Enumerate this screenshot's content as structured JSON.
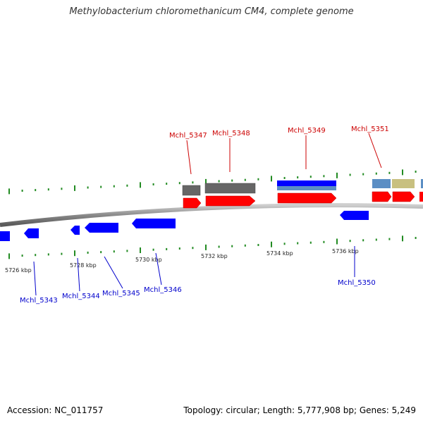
{
  "title": "Methylobacterium chloromethanicum CM4, complete genome",
  "footer": {
    "accession": "Accession: NC_011757",
    "topology": "Topology: circular; Length: 5,777,908 bp; Genes: 5,249"
  },
  "colors": {
    "forward_label": "#cc0000",
    "reverse_label": "#0000cc",
    "backbone": "#888888",
    "tick": "#228b22",
    "cds_forward": "#ff0000",
    "cds_reverse": "#0000ff",
    "gray_feature": "#666666",
    "steelblue_feature": "#5b8ec4",
    "khaki_feature": "#c8c080"
  },
  "scale_labels": [
    "5726 kbp",
    "5728 kbp",
    "5730 kbp",
    "5732 kbp",
    "5734 kbp",
    "5736 kbp"
  ],
  "genes_forward": [
    {
      "name": "Mchl_5347"
    },
    {
      "name": "Mchl_5348"
    },
    {
      "name": "Mchl_5349"
    },
    {
      "name": "Mchl_5351"
    }
  ],
  "genes_reverse": [
    {
      "name": "Mchl_5343"
    },
    {
      "name": "Mchl_5344"
    },
    {
      "name": "Mchl_5345"
    },
    {
      "name": "Mchl_5346"
    },
    {
      "name": "Mchl_5350"
    }
  ]
}
